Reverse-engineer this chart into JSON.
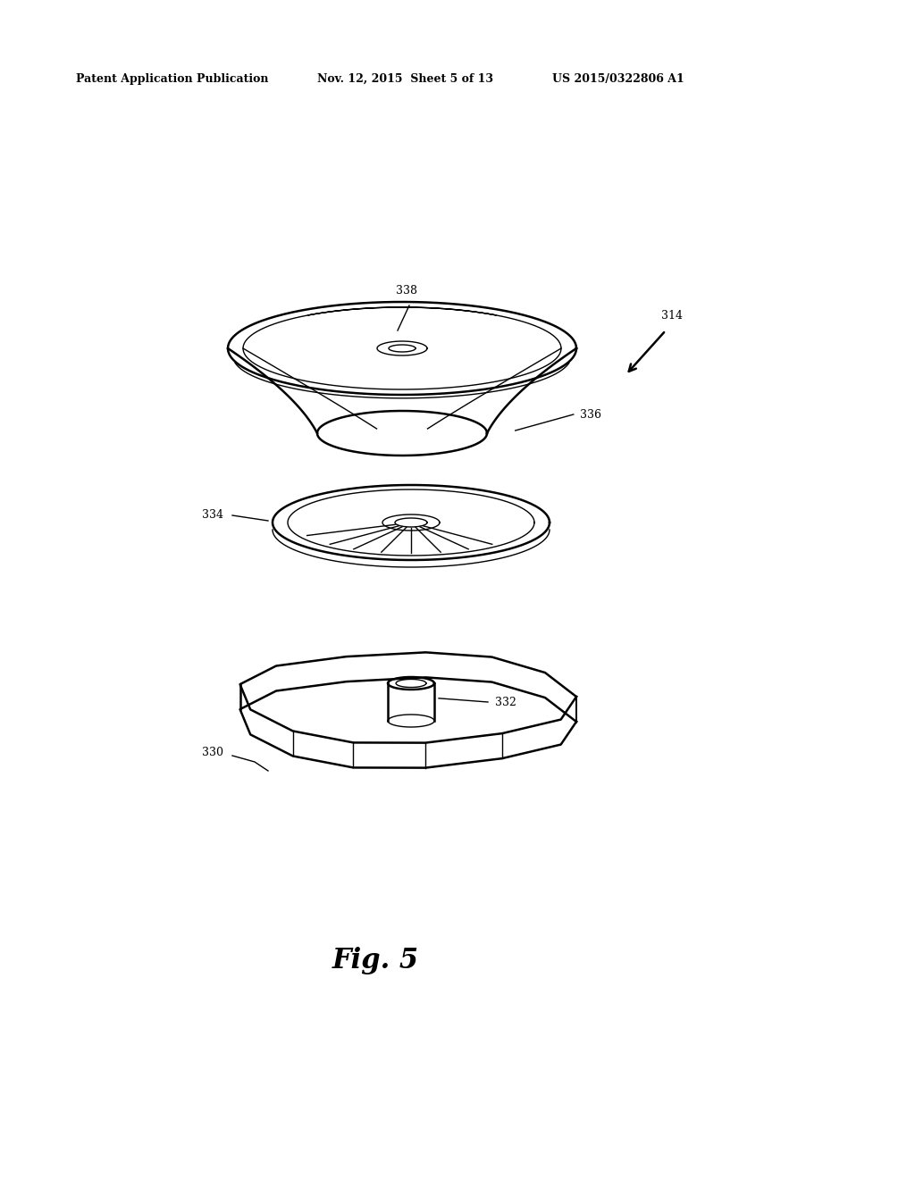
{
  "header_left": "Patent Application Publication",
  "header_mid": "Nov. 12, 2015  Sheet 5 of 13",
  "header_right": "US 2015/0322806 A1",
  "fig_label": "Fig. 5",
  "bg_color": "#ffffff",
  "line_color": "#000000",
  "lw": 1.4,
  "lw_thin": 1.0,
  "lw_thick": 1.8
}
